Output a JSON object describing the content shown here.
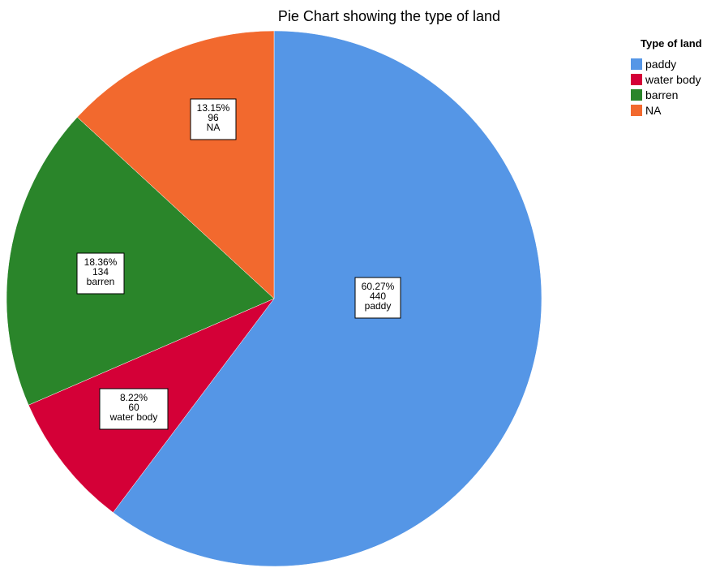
{
  "chart_data": {
    "type": "pie",
    "title": "Pie Chart showing the type of land",
    "legend_title": "Type of land",
    "legend_position": "top-right",
    "slices": [
      {
        "name": "paddy",
        "value": 440,
        "percent_label": "60.27%",
        "count_label": "440",
        "color": "#5596e6"
      },
      {
        "name": "water body",
        "value": 60,
        "percent_label": "8.22%",
        "count_label": "60",
        "color": "#d40037"
      },
      {
        "name": "barren",
        "value": 134,
        "percent_label": "18.36%",
        "count_label": "134",
        "color": "#2a852a"
      },
      {
        "name": "NA",
        "value": 96,
        "percent_label": "13.15%",
        "count_label": "96",
        "color": "#f2692e"
      }
    ]
  }
}
